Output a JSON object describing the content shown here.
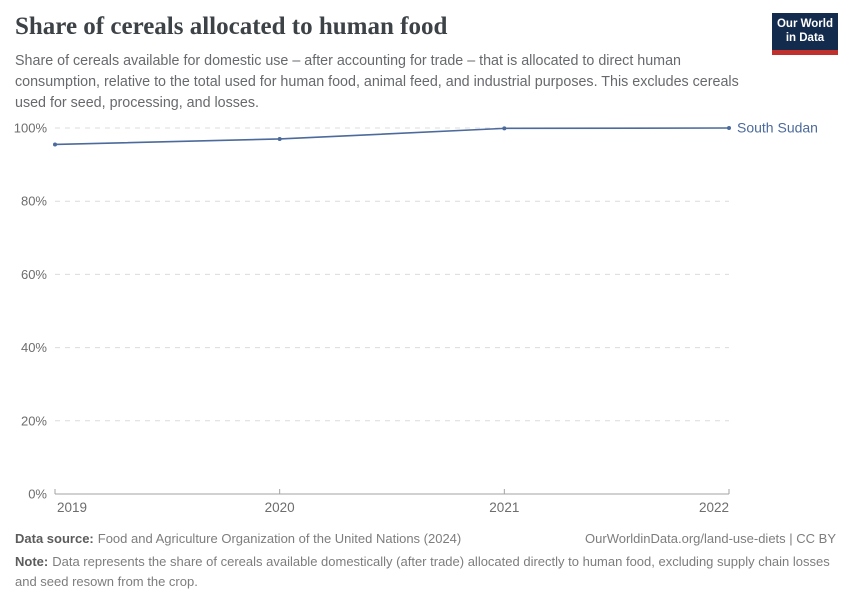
{
  "header": {
    "title": "Share of cereals allocated to human food",
    "subtitle": "Share of cereals available for domestic use – after accounting for trade – that is allocated to direct human consumption, relative to the total used for human food, animal feed, and industrial purposes. This excludes cereals used for seed, processing, and losses.",
    "logo": {
      "line1": "Our World",
      "line2": "in Data",
      "bg_color": "#132b4d",
      "accent_color": "#c0302d"
    }
  },
  "chart_data": {
    "type": "line",
    "title": "Share of cereals allocated to human food",
    "x": [
      2019,
      2020,
      2021,
      2022
    ],
    "xtick_labels": [
      "2019",
      "2020",
      "2021",
      "2022"
    ],
    "series": [
      {
        "name": "South Sudan",
        "values": [
          95.5,
          97.0,
          99.9,
          100.0
        ],
        "color": "#4c6a9c"
      }
    ],
    "ylim": [
      0,
      100
    ],
    "yticks": [
      0,
      20,
      40,
      60,
      80,
      100
    ],
    "ytick_labels": [
      "0%",
      "20%",
      "40%",
      "60%",
      "80%",
      "100%"
    ],
    "ylabel": "",
    "xlabel": "",
    "grid": "horizontal-dashed",
    "legend_position": "right-of-line-end",
    "grid_color": "#dcdcdc",
    "axis_color": "#a3a3a3",
    "tick_label_color": "#6d6d6d"
  },
  "footer": {
    "data_source_label": "Data source:",
    "data_source": "Food and Agriculture Organization of the United Nations (2024)",
    "link": "OurWorldinData.org/land-use-diets | CC BY",
    "note_label": "Note:",
    "note": "Data represents the share of cereals available domestically (after trade) allocated directly to human food, excluding supply chain losses and seed resown from the crop."
  }
}
